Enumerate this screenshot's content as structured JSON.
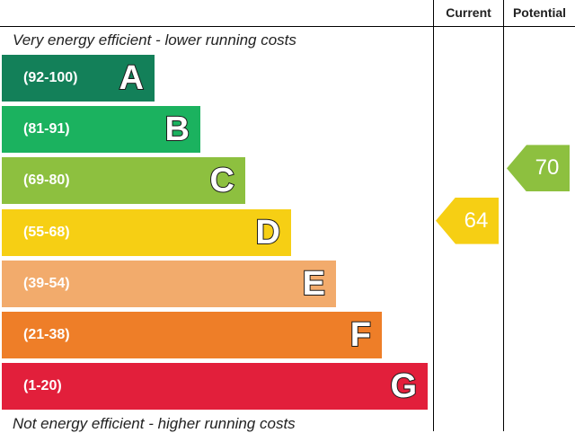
{
  "header": {
    "current_label": "Current",
    "potential_label": "Potential"
  },
  "captions": {
    "top": "Very energy efficient - lower running costs",
    "bottom": "Not energy efficient - higher running costs"
  },
  "chart_data": {
    "type": "bar",
    "categories": [
      "A",
      "B",
      "C",
      "D",
      "E",
      "F",
      "G"
    ],
    "bands": [
      {
        "letter": "A",
        "range": "(92-100)",
        "color": "#138059"
      },
      {
        "letter": "B",
        "range": "(81-91)",
        "color": "#1bb25f"
      },
      {
        "letter": "C",
        "range": "(69-80)",
        "color": "#8dc03f"
      },
      {
        "letter": "D",
        "range": "(55-68)",
        "color": "#f6cf14"
      },
      {
        "letter": "E",
        "range": "(39-54)",
        "color": "#f2ab6c"
      },
      {
        "letter": "F",
        "range": "(21-38)",
        "color": "#ee7e28"
      },
      {
        "letter": "G",
        "range": "(1-20)",
        "color": "#e21f3b"
      }
    ],
    "current": {
      "value": "64",
      "band": "D",
      "color": "#f6cf14"
    },
    "potential": {
      "value": "70",
      "band": "C",
      "color": "#8dc03f"
    }
  }
}
